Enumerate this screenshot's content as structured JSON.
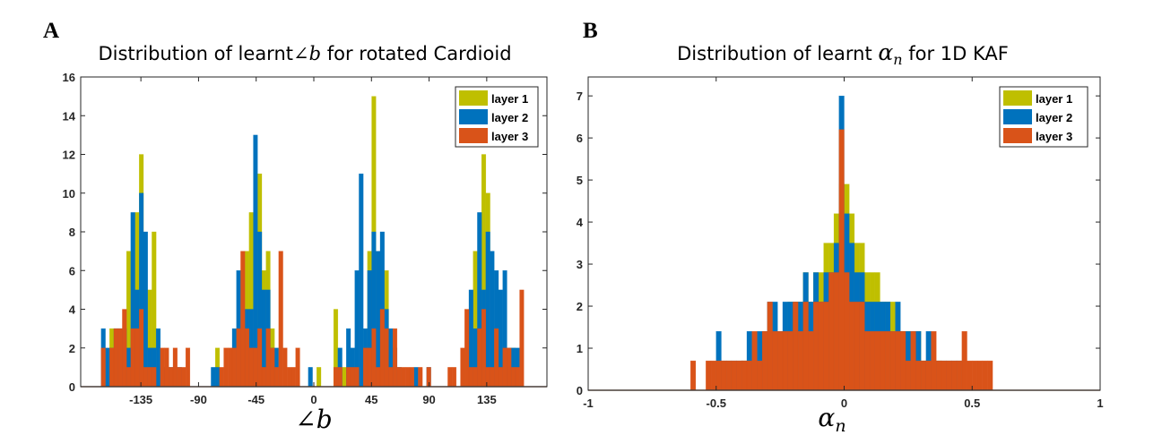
{
  "chart_data": [
    {
      "type": "bar",
      "panel_label": "A",
      "title_prefix": "Distribution of learnt",
      "title_math": "∠b",
      "title_suffix": " for rotated Cardioid",
      "xlabel": "∠b",
      "ylabel": "",
      "xlim": [
        -182,
        182
      ],
      "ylim": [
        0,
        16
      ],
      "xticks": [
        -135,
        -90,
        -45,
        0,
        45,
        90,
        135
      ],
      "yticks": [
        0,
        2,
        4,
        6,
        8,
        10,
        12,
        14,
        16
      ],
      "bin_start": -166,
      "bin_width": 3.3,
      "legend_position": "top-right",
      "series": [
        {
          "name": "layer 1",
          "color": "#BFBF00",
          "values": [
            0,
            0,
            3,
            0,
            0,
            0,
            7,
            0,
            9,
            12,
            0,
            5,
            8,
            0,
            0,
            0,
            0,
            0,
            0,
            0,
            0,
            0,
            0,
            0,
            0,
            0,
            0,
            2,
            0,
            0,
            0,
            0,
            0,
            0,
            7,
            9,
            0,
            11,
            6,
            7,
            3,
            0,
            0,
            0,
            0,
            0,
            0,
            0,
            0,
            0,
            0,
            1,
            0,
            0,
            0,
            4,
            0,
            1,
            0,
            0,
            0,
            0,
            0,
            7,
            15,
            0,
            0,
            6,
            0,
            0,
            0,
            0,
            0,
            0,
            0,
            0,
            0,
            0,
            0,
            0,
            0,
            0,
            0,
            0,
            0,
            0,
            2,
            0,
            7,
            0,
            12,
            10,
            0,
            0,
            0,
            0,
            0,
            2,
            0,
            0
          ]
        },
        {
          "name": "layer 2",
          "color": "#0072BD",
          "values": [
            3,
            2,
            2,
            3,
            3,
            3,
            2,
            9,
            5,
            10,
            8,
            2,
            2,
            3,
            1,
            1,
            1,
            0,
            1,
            0,
            0,
            0,
            0,
            0,
            0,
            0,
            1,
            1,
            0,
            0,
            0,
            3,
            6,
            3,
            4,
            4,
            13,
            8,
            5,
            5,
            2,
            2,
            0,
            0,
            0,
            0,
            0,
            0,
            0,
            1,
            0,
            0,
            0,
            0,
            0,
            0,
            2,
            0,
            3,
            2,
            6,
            11,
            3,
            6,
            8,
            7,
            8,
            4,
            3,
            2,
            1,
            0,
            0,
            0,
            1,
            0,
            0,
            1,
            0,
            0,
            0,
            0,
            0,
            0,
            0,
            0,
            0,
            5,
            3,
            9,
            5,
            8,
            7,
            6,
            5,
            6,
            2,
            2,
            2,
            0
          ]
        },
        {
          "name": "layer 3",
          "color": "#D95319",
          "values": [
            2,
            0,
            2,
            3,
            3,
            4,
            1,
            3,
            3,
            4,
            1,
            1,
            1,
            0,
            2,
            2,
            1,
            2,
            1,
            1,
            2,
            0,
            0,
            0,
            0,
            0,
            0,
            0,
            1,
            2,
            2,
            2,
            3,
            7,
            3,
            2,
            2,
            3,
            1,
            3,
            2,
            1,
            7,
            2,
            1,
            1,
            2,
            0,
            0,
            0,
            0,
            0,
            0,
            0,
            0,
            1,
            1,
            0,
            1,
            1,
            1,
            0,
            2,
            2,
            3,
            1,
            4,
            3,
            1,
            3,
            1,
            1,
            1,
            1,
            0,
            1,
            0,
            1,
            0,
            0,
            0,
            0,
            1,
            1,
            0,
            2,
            4,
            1,
            1,
            3,
            4,
            1,
            1,
            3,
            1,
            2,
            2,
            1,
            1,
            5
          ]
        }
      ]
    },
    {
      "type": "bar",
      "panel_label": "B",
      "title_prefix": "Distribution of learnt ",
      "title_math": "α",
      "title_math_sub": "n",
      "title_suffix": " for 1D KAF",
      "xlabel": "α",
      "xlabel_sub": "n",
      "ylabel": "",
      "xlim": [
        -1,
        1
      ],
      "ylim": [
        0,
        7.45
      ],
      "xticks": [
        -1,
        -0.5,
        0,
        0.5,
        1
      ],
      "yticks": [
        0,
        1,
        2,
        3,
        4,
        5,
        6,
        7
      ],
      "bin_start": -0.6,
      "bin_width": 0.02,
      "legend_position": "top-right",
      "series": [
        {
          "name": "layer 1",
          "color": "#BFBF00",
          "values": [
            0,
            0,
            0,
            0,
            0,
            0,
            0,
            0,
            0,
            0,
            0.7,
            0,
            0.7,
            0.7,
            1.4,
            0.7,
            1.4,
            1.4,
            1.4,
            2.1,
            2.1,
            2.1,
            2.8,
            2.1,
            2.8,
            2.8,
            3.5,
            3.5,
            4.2,
            4.9,
            4.9,
            4.2,
            3.5,
            3.5,
            2.8,
            2.8,
            2.8,
            2.1,
            2.1,
            2.1,
            1.4,
            1.4,
            1.4,
            0.7,
            1.4,
            0.7,
            0.7,
            0,
            0.7,
            0,
            0,
            0,
            0,
            0,
            0,
            0,
            0,
            0,
            0,
            0
          ]
        },
        {
          "name": "layer 2",
          "color": "#0072BD",
          "values": [
            0,
            0,
            0,
            0,
            0,
            1.4,
            0.7,
            0.7,
            0.7,
            0.7,
            0.7,
            1.4,
            0.7,
            1.4,
            1.4,
            2.1,
            2.1,
            1.4,
            2.1,
            2.1,
            2.1,
            2.1,
            2.8,
            2.1,
            2.8,
            2.1,
            2.8,
            2.8,
            3.5,
            7.0,
            4.2,
            3.5,
            2.8,
            2.8,
            2.1,
            2.1,
            2.1,
            2.1,
            2.1,
            1.4,
            2.1,
            1.4,
            1.4,
            1.4,
            1.4,
            0.7,
            1.4,
            0.7,
            0.7,
            0.7,
            0.7,
            0.7,
            0.7,
            0,
            0,
            0,
            0,
            0,
            0,
            0
          ]
        },
        {
          "name": "layer 3",
          "color": "#D95319",
          "values": [
            0.7,
            0,
            0,
            0.7,
            0.7,
            0.7,
            0.7,
            0.7,
            0.7,
            0.7,
            0.7,
            0.7,
            1.4,
            0.7,
            1.4,
            2.1,
            1.4,
            1.4,
            1.4,
            1.4,
            2.1,
            1.4,
            2.1,
            1.4,
            2.1,
            2.1,
            2.1,
            2.8,
            2.8,
            6.2,
            2.8,
            2.1,
            2.1,
            2.1,
            1.4,
            1.4,
            1.4,
            1.4,
            1.4,
            1.4,
            1.4,
            1.4,
            0.7,
            1.4,
            0.7,
            0.7,
            0.7,
            1.4,
            0.7,
            0.7,
            0.7,
            0.7,
            0.7,
            1.4,
            0.7,
            0.7,
            0.7,
            0.7,
            0.7,
            0
          ]
        }
      ]
    }
  ]
}
